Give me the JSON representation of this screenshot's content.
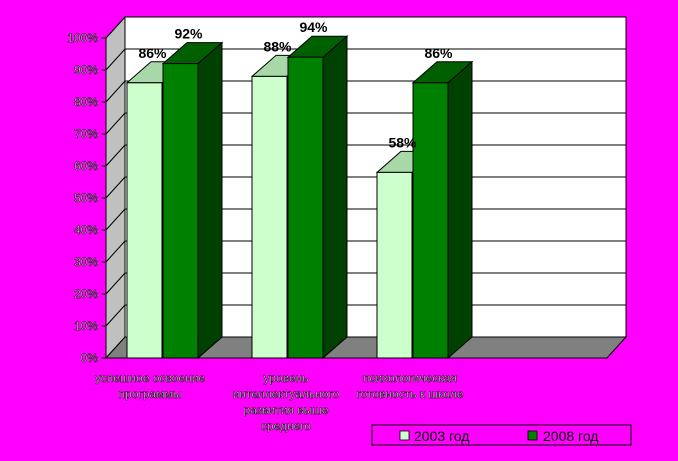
{
  "chart_data": {
    "type": "bar",
    "categories": [
      [
        "успешное освоение",
        "программы"
      ],
      [
        "уровень",
        "интеллектуального",
        "развития выше",
        "среднего"
      ],
      [
        "психологическая",
        "готовность к школе"
      ]
    ],
    "series": [
      {
        "name": "2003 год",
        "values": [
          86,
          88,
          58
        ],
        "labels": [
          "86%",
          "88%",
          "58%"
        ],
        "color": "#ccffcc"
      },
      {
        "name": "2008 год",
        "values": [
          92,
          94,
          86
        ],
        "labels": [
          "92%",
          "94%",
          "86%"
        ],
        "color": "#008000"
      }
    ],
    "y_ticks": [
      "0%",
      "10%",
      "20%",
      "30%",
      "40%",
      "50%",
      "60%",
      "70%",
      "80%",
      "90%",
      "100%"
    ],
    "ylim": [
      0,
      100
    ],
    "grid": true,
    "legend_position": "bottom-right",
    "colors": {
      "background": "#ff00ff",
      "plot": "#ffffff",
      "floor": "#808080",
      "wall_side": "#c0c0c0"
    }
  }
}
